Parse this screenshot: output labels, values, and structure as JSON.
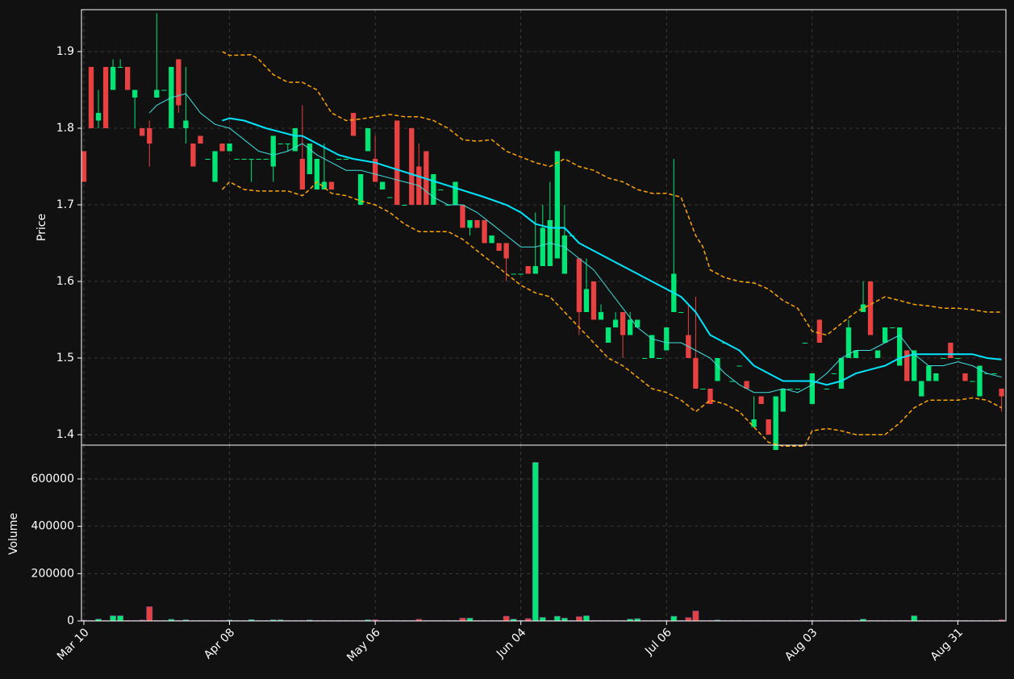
{
  "chart_data": {
    "type": "candlestick",
    "ylabel": "Price",
    "volume_label": "Volume",
    "xlim": [
      -0.33,
      126.6
    ],
    "xticks": [
      {
        "value": 0,
        "label": "Mar 10"
      },
      {
        "value": 20,
        "label": "Apr 08"
      },
      {
        "value": 40,
        "label": "May 06"
      },
      {
        "value": 60,
        "label": "Jun 04"
      },
      {
        "value": 80,
        "label": "Jul 06"
      },
      {
        "value": 100,
        "label": "Aug 03"
      },
      {
        "value": 120,
        "label": "Aug 31"
      }
    ],
    "ylim": [
      1.3863,
      1.9547
    ],
    "yticks": [
      1.4,
      1.5,
      1.6,
      1.7,
      1.8,
      1.9
    ],
    "volume_ylim": [
      0,
      743000
    ],
    "volume_yticks": [
      0,
      200000,
      400000,
      600000
    ],
    "grid": true,
    "up_color": "#00e676",
    "down_color": "#e84142",
    "candles": [
      [
        1.77,
        1.77,
        1.73,
        1.73
      ],
      [
        1.88,
        1.88,
        1.8,
        1.8
      ],
      [
        1.81,
        1.85,
        1.8,
        1.82
      ],
      [
        1.88,
        1.88,
        1.8,
        1.8
      ],
      [
        1.85,
        1.89,
        1.85,
        1.88
      ],
      [
        1.88,
        1.89,
        1.88,
        1.88
      ],
      [
        1.88,
        1.88,
        1.85,
        1.85
      ],
      [
        1.84,
        1.85,
        1.8,
        1.85
      ],
      [
        1.8,
        1.8,
        1.79,
        1.79
      ],
      [
        1.8,
        1.81,
        1.75,
        1.78
      ],
      [
        1.84,
        1.95,
        1.84,
        1.85
      ],
      [
        1.85,
        1.85,
        1.85,
        1.85
      ],
      [
        1.8,
        1.88,
        1.8,
        1.88
      ],
      [
        1.89,
        1.89,
        1.82,
        1.83
      ],
      [
        1.8,
        1.88,
        1.78,
        1.81
      ],
      [
        1.78,
        1.78,
        1.75,
        1.75
      ],
      [
        1.79,
        1.79,
        1.78,
        1.78
      ],
      [
        1.76,
        1.76,
        1.76,
        1.76
      ],
      [
        1.73,
        1.77,
        1.73,
        1.77
      ],
      [
        1.78,
        1.78,
        1.77,
        1.77
      ],
      [
        1.77,
        1.78,
        1.77,
        1.78
      ],
      [
        1.76,
        1.76,
        1.76,
        1.76
      ],
      [
        1.76,
        1.76,
        1.76,
        1.76
      ],
      [
        1.76,
        1.76,
        1.73,
        1.76
      ],
      [
        1.76,
        1.76,
        1.76,
        1.76
      ],
      [
        1.76,
        1.76,
        1.76,
        1.76
      ],
      [
        1.75,
        1.79,
        1.73,
        1.79
      ],
      [
        1.78,
        1.78,
        1.78,
        1.78
      ],
      [
        1.78,
        1.78,
        1.77,
        1.78
      ],
      [
        1.77,
        1.8,
        1.77,
        1.8
      ],
      [
        1.76,
        1.83,
        1.72,
        1.72
      ],
      [
        1.74,
        1.78,
        1.74,
        1.78
      ],
      [
        1.72,
        1.76,
        1.72,
        1.76
      ],
      [
        1.72,
        1.78,
        1.72,
        1.73
      ],
      [
        1.73,
        1.73,
        1.72,
        1.72
      ],
      [
        1.76,
        1.76,
        1.76,
        1.76
      ],
      [
        1.76,
        1.76,
        1.76,
        1.76
      ],
      [
        1.82,
        1.82,
        1.79,
        1.79
      ],
      [
        1.7,
        1.74,
        1.7,
        1.74
      ],
      [
        1.77,
        1.8,
        1.77,
        1.8
      ],
      [
        1.76,
        1.79,
        1.73,
        1.73
      ],
      [
        1.72,
        1.73,
        1.72,
        1.73
      ],
      [
        1.71,
        1.71,
        1.71,
        1.71
      ],
      [
        1.81,
        1.81,
        1.7,
        1.7
      ],
      [
        1.7,
        1.7,
        1.7,
        1.7
      ],
      [
        1.8,
        1.8,
        1.7,
        1.7
      ],
      [
        1.75,
        1.78,
        1.7,
        1.7
      ],
      [
        1.77,
        1.77,
        1.7,
        1.7
      ],
      [
        1.7,
        1.74,
        1.7,
        1.74
      ],
      [
        1.72,
        1.72,
        1.72,
        1.72
      ],
      [
        1.7,
        1.7,
        1.7,
        1.7
      ],
      [
        1.7,
        1.73,
        1.7,
        1.73
      ],
      [
        1.7,
        1.7,
        1.67,
        1.67
      ],
      [
        1.67,
        1.68,
        1.66,
        1.68
      ],
      [
        1.68,
        1.68,
        1.67,
        1.67
      ],
      [
        1.68,
        1.68,
        1.65,
        1.65
      ],
      [
        1.65,
        1.66,
        1.65,
        1.66
      ],
      [
        1.65,
        1.65,
        1.64,
        1.64
      ],
      [
        1.65,
        1.65,
        1.6,
        1.63
      ],
      [
        1.61,
        1.61,
        1.61,
        1.61
      ],
      [
        1.61,
        1.61,
        1.61,
        1.61
      ],
      [
        1.62,
        1.62,
        1.61,
        1.61
      ],
      [
        1.61,
        1.69,
        1.61,
        1.62
      ],
      [
        1.62,
        1.7,
        1.62,
        1.67
      ],
      [
        1.62,
        1.73,
        1.62,
        1.68
      ],
      [
        1.63,
        1.77,
        1.63,
        1.77
      ],
      [
        1.61,
        1.7,
        1.61,
        1.66
      ],
      [
        1.66,
        1.66,
        1.66,
        1.66
      ],
      [
        1.63,
        1.63,
        1.53,
        1.56
      ],
      [
        1.56,
        1.63,
        1.56,
        1.59
      ],
      [
        1.6,
        1.6,
        1.55,
        1.55
      ],
      [
        1.55,
        1.57,
        1.55,
        1.56
      ],
      [
        1.52,
        1.54,
        1.52,
        1.54
      ],
      [
        1.54,
        1.56,
        1.54,
        1.55
      ],
      [
        1.56,
        1.56,
        1.5,
        1.53
      ],
      [
        1.53,
        1.56,
        1.53,
        1.55
      ],
      [
        1.54,
        1.55,
        1.54,
        1.55
      ],
      [
        1.5,
        1.5,
        1.5,
        1.5
      ],
      [
        1.5,
        1.53,
        1.5,
        1.53
      ],
      [
        1.5,
        1.5,
        1.5,
        1.5
      ],
      [
        1.51,
        1.54,
        1.51,
        1.54
      ],
      [
        1.56,
        1.76,
        1.56,
        1.61
      ],
      [
        1.56,
        1.56,
        1.56,
        1.56
      ],
      [
        1.53,
        1.57,
        1.5,
        1.5
      ],
      [
        1.5,
        1.58,
        1.46,
        1.46
      ],
      [
        1.46,
        1.46,
        1.46,
        1.46
      ],
      [
        1.46,
        1.46,
        1.44,
        1.44
      ],
      [
        1.47,
        1.5,
        1.47,
        1.5
      ],
      [
        1.52,
        1.52,
        1.52,
        1.52
      ],
      [
        1.47,
        1.47,
        1.47,
        1.47
      ],
      [
        1.49,
        1.49,
        1.49,
        1.49
      ],
      [
        1.47,
        1.47,
        1.46,
        1.46
      ],
      [
        1.41,
        1.45,
        1.41,
        1.42
      ],
      [
        1.45,
        1.45,
        1.44,
        1.44
      ],
      [
        1.42,
        1.42,
        1.4,
        1.4
      ],
      [
        1.38,
        1.45,
        1.38,
        1.45
      ],
      [
        1.43,
        1.46,
        1.43,
        1.46
      ],
      [
        1.46,
        1.46,
        1.46,
        1.46
      ],
      [
        1.46,
        1.46,
        1.46,
        1.46
      ],
      [
        1.52,
        1.52,
        1.52,
        1.52
      ],
      [
        1.44,
        1.48,
        1.44,
        1.48
      ],
      [
        1.55,
        1.55,
        1.52,
        1.52
      ],
      [
        1.46,
        1.46,
        1.46,
        1.46
      ],
      [
        1.48,
        1.48,
        1.48,
        1.48
      ],
      [
        1.46,
        1.5,
        1.46,
        1.5
      ],
      [
        1.5,
        1.55,
        1.5,
        1.54
      ],
      [
        1.5,
        1.51,
        1.5,
        1.51
      ],
      [
        1.56,
        1.6,
        1.56,
        1.57
      ],
      [
        1.6,
        1.6,
        1.53,
        1.53
      ],
      [
        1.5,
        1.51,
        1.5,
        1.51
      ],
      [
        1.52,
        1.54,
        1.52,
        1.54
      ],
      [
        1.54,
        1.54,
        1.54,
        1.54
      ],
      [
        1.49,
        1.54,
        1.49,
        1.54
      ],
      [
        1.51,
        1.51,
        1.47,
        1.47
      ],
      [
        1.47,
        1.51,
        1.47,
        1.51
      ],
      [
        1.45,
        1.47,
        1.45,
        1.47
      ],
      [
        1.47,
        1.49,
        1.47,
        1.49
      ],
      [
        1.47,
        1.48,
        1.47,
        1.48
      ],
      [
        1.5,
        1.5,
        1.5,
        1.5
      ],
      [
        1.52,
        1.52,
        1.5,
        1.5
      ],
      [
        1.5,
        1.5,
        1.5,
        1.5
      ],
      [
        1.48,
        1.48,
        1.47,
        1.47
      ],
      [
        1.47,
        1.47,
        1.47,
        1.47
      ],
      [
        1.45,
        1.49,
        1.45,
        1.49
      ],
      [
        1.48,
        1.48,
        1.48,
        1.48
      ],
      [
        1.48,
        1.48,
        1.48,
        1.48
      ],
      [
        1.46,
        1.46,
        1.43,
        1.45
      ]
    ],
    "volume": [
      3000,
      2000,
      8000,
      2000,
      22000,
      22000,
      2000,
      2000,
      4000,
      60000,
      2000,
      2000,
      7000,
      2000,
      5000,
      2000,
      2000,
      2000,
      2000,
      2000,
      4000,
      2000,
      2000,
      6000,
      2000,
      2000,
      5000,
      5000,
      2000,
      2000,
      2000,
      4000,
      2000,
      2000,
      2000,
      2000,
      2000,
      2000,
      2000,
      5000,
      5000,
      2000,
      2000,
      2000,
      2000,
      2000,
      7000,
      2000,
      2000,
      2000,
      2000,
      2000,
      12000,
      12000,
      2000,
      2000,
      2000,
      2000,
      20000,
      8000,
      2000,
      10000,
      670000,
      15000,
      2000,
      20000,
      12000,
      2000,
      18000,
      22000,
      2000,
      2000,
      2000,
      2000,
      2000,
      8000,
      10000,
      2000,
      2000,
      2000,
      2000,
      20000,
      2000,
      14000,
      42000,
      2000,
      2000,
      4000,
      2000,
      2000,
      2000,
      2000,
      2000,
      2000,
      2000,
      2000,
      2000,
      2000,
      2000,
      2000,
      2000,
      2000,
      2000,
      2000,
      2000,
      2000,
      2000,
      8000,
      2000,
      2000,
      2000,
      2000,
      2000,
      2000,
      22000,
      2000,
      2000,
      2000,
      2000,
      2000,
      2000,
      2000,
      2000,
      2000,
      2000,
      2000,
      5000
    ],
    "overlays": [
      {
        "color": "#40e0e0",
        "width": 1,
        "dash": false,
        "x": [
          9,
          10,
          12,
          14,
          16,
          18,
          20,
          22,
          24,
          26,
          28,
          30,
          32,
          34,
          36,
          38,
          40,
          42,
          44,
          46,
          48,
          50,
          52,
          54,
          56,
          58,
          60,
          62,
          64,
          66,
          68,
          70,
          72,
          74,
          76,
          78,
          80,
          82,
          84,
          86,
          88,
          90,
          92,
          94,
          96,
          98,
          100,
          102,
          104,
          106,
          108,
          110,
          112,
          114,
          116,
          118,
          120,
          122,
          124,
          126
        ],
        "values": [
          1.82,
          1.83,
          1.84,
          1.845,
          1.82,
          1.805,
          1.8,
          1.785,
          1.77,
          1.765,
          1.77,
          1.78,
          1.765,
          1.755,
          1.745,
          1.745,
          1.74,
          1.735,
          1.73,
          1.725,
          1.71,
          1.7,
          1.7,
          1.69,
          1.675,
          1.66,
          1.645,
          1.645,
          1.65,
          1.645,
          1.63,
          1.615,
          1.59,
          1.565,
          1.54,
          1.525,
          1.52,
          1.52,
          1.51,
          1.5,
          1.48,
          1.465,
          1.455,
          1.455,
          1.46,
          1.455,
          1.465,
          1.48,
          1.5,
          1.51,
          1.51,
          1.52,
          1.53,
          1.505,
          1.49,
          1.49,
          1.495,
          1.49,
          1.48,
          1.475
        ]
      },
      {
        "color": "#00e5ff",
        "width": 2,
        "dash": false,
        "x": [
          19,
          20,
          22,
          25,
          27,
          29,
          30,
          33,
          35,
          37,
          40,
          45,
          50,
          55,
          58,
          60,
          62,
          64,
          66,
          68,
          70,
          72,
          75,
          78,
          80,
          82,
          84,
          86,
          88,
          90,
          92,
          94,
          96,
          100,
          102,
          104,
          106,
          108,
          110,
          112,
          114,
          118,
          122,
          124,
          126
        ],
        "values": [
          1.81,
          1.813,
          1.81,
          1.8,
          1.795,
          1.79,
          1.79,
          1.775,
          1.765,
          1.76,
          1.755,
          1.74,
          1.725,
          1.71,
          1.7,
          1.69,
          1.675,
          1.67,
          1.67,
          1.65,
          1.64,
          1.63,
          1.615,
          1.6,
          1.59,
          1.58,
          1.56,
          1.53,
          1.52,
          1.51,
          1.49,
          1.48,
          1.47,
          1.47,
          1.465,
          1.47,
          1.48,
          1.485,
          1.49,
          1.5,
          1.505,
          1.505,
          1.505,
          1.5,
          1.498
        ]
      },
      {
        "color": "#ffa500",
        "width": 1.5,
        "dash": true,
        "x": [
          19,
          20,
          23,
          24,
          26,
          28,
          30,
          32,
          34,
          36,
          38,
          40,
          42,
          44,
          46,
          48,
          50,
          52,
          54,
          56,
          58,
          62,
          64,
          66,
          68,
          70,
          72,
          74,
          76,
          78,
          80,
          82,
          84,
          85,
          86,
          88,
          90,
          92,
          94,
          96,
          98,
          100,
          102,
          104,
          106,
          108,
          110,
          112,
          114,
          116,
          118,
          120,
          122,
          124,
          126
        ],
        "values": [
          1.9,
          1.895,
          1.896,
          1.89,
          1.87,
          1.86,
          1.86,
          1.85,
          1.82,
          1.81,
          1.812,
          1.815,
          1.818,
          1.815,
          1.815,
          1.81,
          1.8,
          1.785,
          1.783,
          1.785,
          1.77,
          1.755,
          1.75,
          1.76,
          1.75,
          1.745,
          1.735,
          1.73,
          1.72,
          1.715,
          1.715,
          1.71,
          1.66,
          1.645,
          1.615,
          1.605,
          1.6,
          1.598,
          1.59,
          1.575,
          1.565,
          1.535,
          1.53,
          1.545,
          1.56,
          1.57,
          1.58,
          1.575,
          1.57,
          1.568,
          1.565,
          1.565,
          1.563,
          1.56,
          1.56
        ]
      },
      {
        "color": "#ffa500",
        "width": 1.5,
        "dash": true,
        "x": [
          19,
          20,
          22,
          24,
          26,
          28,
          30,
          31,
          32,
          34,
          36,
          38,
          40,
          42,
          44,
          46,
          48,
          50,
          52,
          54,
          56,
          58,
          60,
          62,
          64,
          66,
          68,
          70,
          72,
          74,
          76,
          78,
          80,
          82,
          84,
          86,
          88,
          90,
          92,
          94,
          96,
          98,
          99,
          100,
          102,
          104,
          106,
          108,
          110,
          112,
          114,
          116,
          118,
          120,
          122,
          124,
          126
        ],
        "values": [
          1.72,
          1.73,
          1.72,
          1.718,
          1.718,
          1.718,
          1.712,
          1.72,
          1.73,
          1.715,
          1.712,
          1.705,
          1.7,
          1.69,
          1.675,
          1.665,
          1.665,
          1.665,
          1.655,
          1.64,
          1.625,
          1.61,
          1.595,
          1.585,
          1.58,
          1.56,
          1.54,
          1.52,
          1.5,
          1.49,
          1.475,
          1.46,
          1.455,
          1.445,
          1.43,
          1.445,
          1.44,
          1.43,
          1.41,
          1.39,
          1.385,
          1.385,
          1.385,
          1.405,
          1.408,
          1.405,
          1.4,
          1.4,
          1.4,
          1.415,
          1.435,
          1.445,
          1.445,
          1.445,
          1.448,
          1.445,
          1.435
        ]
      }
    ]
  }
}
